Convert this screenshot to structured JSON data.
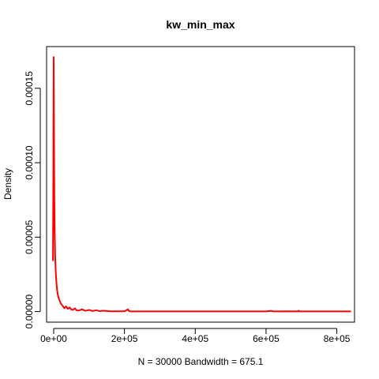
{
  "chart_data": {
    "type": "line",
    "title": "kw_min_max",
    "xlabel": "N = 30000   Bandwidth = 675.1",
    "ylabel": "Density",
    "xlim": [
      -20000,
      850000
    ],
    "ylim": [
      -7.1e-06,
      0.000178
    ],
    "x_ticks": [
      0,
      200000,
      400000,
      600000,
      800000
    ],
    "x_tick_labels": [
      "0e+00",
      "2e+05",
      "4e+05",
      "6e+05",
      "8e+05"
    ],
    "y_ticks": [
      0,
      5e-05,
      0.0001,
      0.00015
    ],
    "y_tick_labels": [
      "0.00000",
      "0.00005",
      "0.00010",
      "0.00015"
    ],
    "grid": false,
    "series": [
      {
        "color": "#ff0000",
        "x": [
          -2000,
          -1000,
          0,
          1000,
          2000,
          3000,
          4000,
          5000,
          6000,
          8000,
          10000,
          12000,
          15000,
          18000,
          20000,
          25000,
          30000,
          35000,
          40000,
          45000,
          50000,
          55000,
          60000,
          65000,
          70000,
          80000,
          90000,
          100000,
          110000,
          120000,
          130000,
          140000,
          150000,
          160000,
          180000,
          200000,
          210000,
          212000,
          215000,
          220000,
          260000,
          300000,
          350000,
          400000,
          450000,
          500000,
          550000,
          600000,
          615000,
          620000,
          640000,
          660000,
          690000,
          692000,
          695000,
          720000,
          760000,
          800000,
          840000
        ],
        "y": [
          3.4e-05,
          9e-05,
          0.000171,
          0.00012,
          7.5e-05,
          5.2e-05,
          4e-05,
          3.2e-05,
          2.6e-05,
          1.9e-05,
          1.4e-05,
          1.1e-05,
          8.5e-06,
          6.8e-06,
          5.5e-06,
          4e-06,
          2.2e-06,
          3.5e-06,
          1.8e-06,
          2.8e-06,
          1.4e-06,
          1.2e-06,
          2.2e-06,
          8e-07,
          7e-07,
          1.5e-06,
          5e-07,
          1.1e-06,
          4e-07,
          9e-07,
          3e-07,
          6e-07,
          4e-07,
          2e-07,
          2e-07,
          2e-07,
          1.5e-06,
          5e-07,
          2e-07,
          1e-07,
          1e-07,
          1e-07,
          1e-07,
          1e-07,
          1e-07,
          1e-07,
          1e-07,
          1e-07,
          5e-07,
          1e-07,
          1e-07,
          2e-07,
          1e-07,
          6e-07,
          1e-07,
          1e-07,
          1e-07,
          1e-07,
          1e-07
        ]
      }
    ]
  }
}
